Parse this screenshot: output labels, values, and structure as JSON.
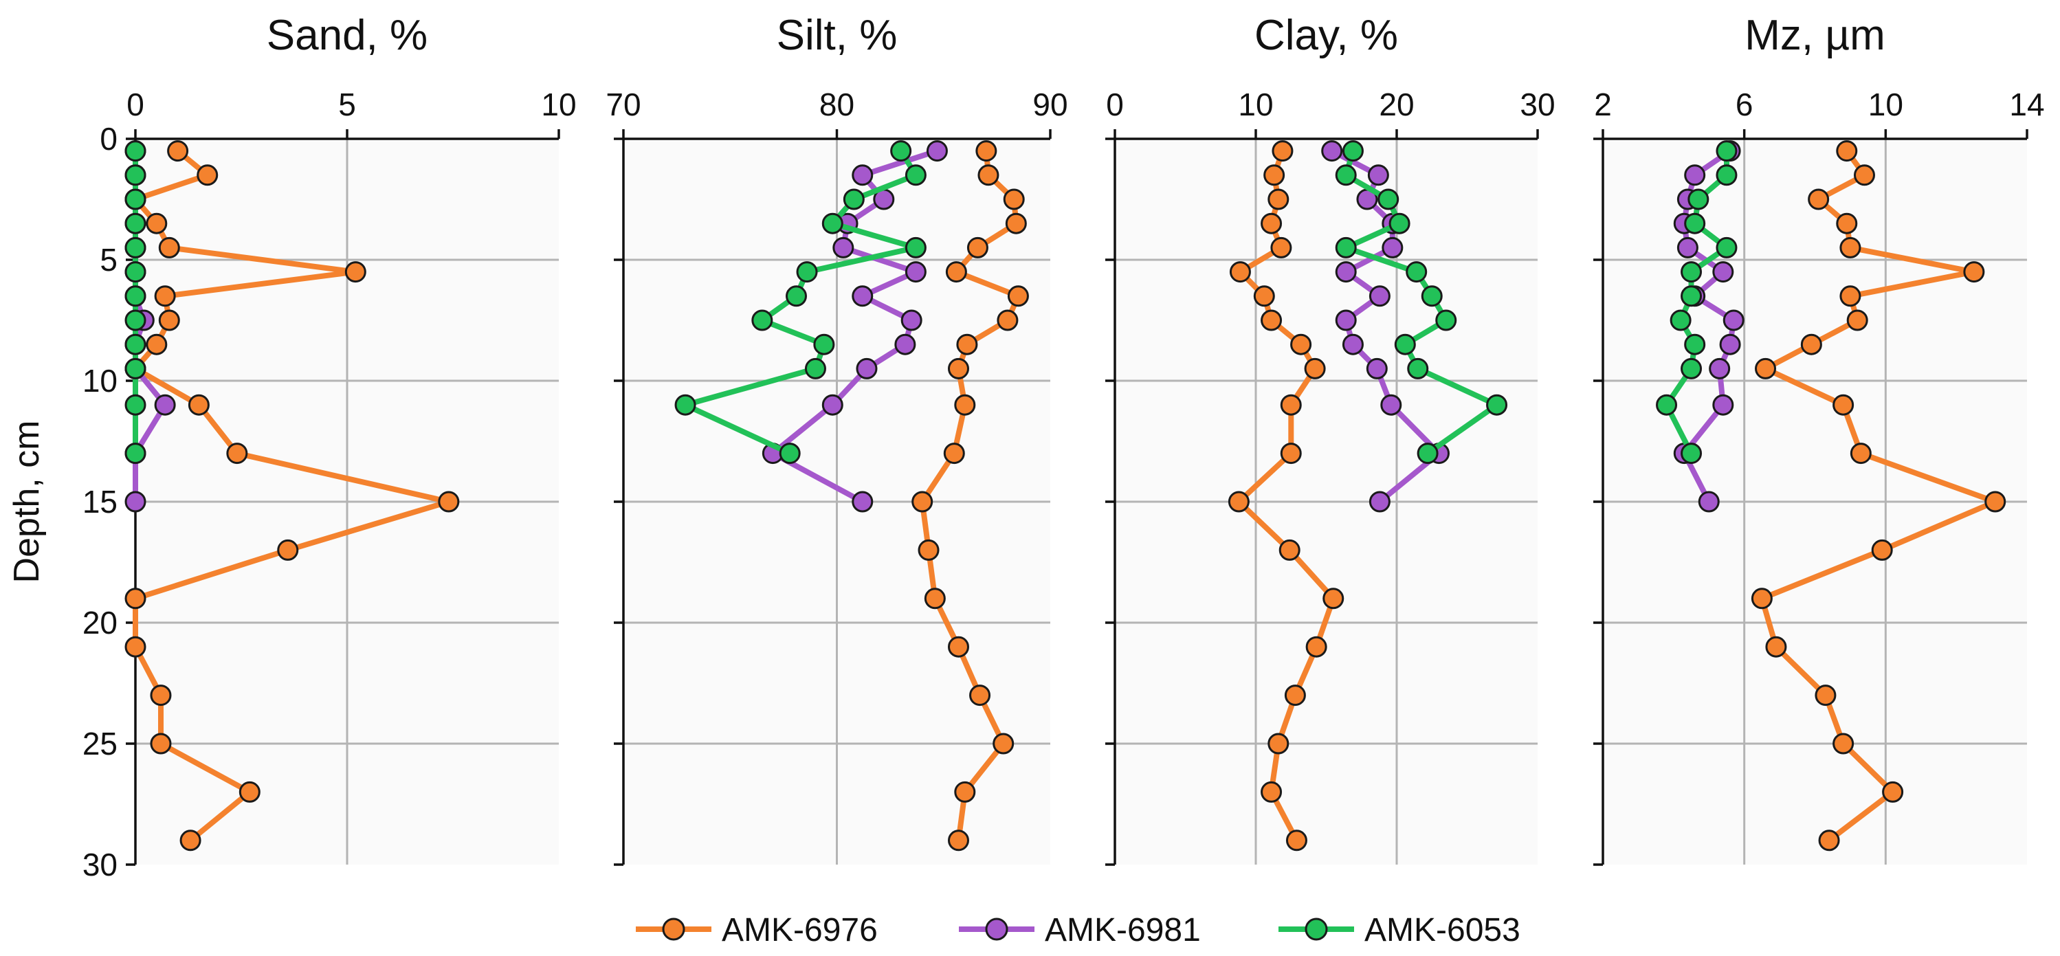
{
  "chart_data": [
    {
      "type": "line",
      "title": "Sand, %",
      "xlabel": "Sand, %",
      "ylabel": "Depth, cm",
      "xlim": [
        0,
        10
      ],
      "ylim": [
        0,
        30
      ],
      "y_inverted": true,
      "xticks": [
        0,
        5,
        10
      ],
      "yticks": [
        0,
        5,
        10,
        15,
        20,
        25,
        30
      ],
      "grid": true,
      "series": [
        {
          "name": "AMK-6976",
          "x": [
            1.0,
            1.7,
            0.0,
            0.5,
            0.8,
            5.2,
            0.7,
            0.8,
            0.5,
            0.0,
            1.5,
            2.4,
            7.4,
            3.6,
            0.0,
            0.0,
            0.6,
            0.6,
            2.7,
            1.3
          ],
          "y": [
            0.5,
            1.5,
            2.5,
            3.5,
            4.5,
            5.5,
            6.5,
            7.5,
            8.5,
            9.5,
            11,
            13,
            15,
            17,
            19,
            21,
            23,
            25,
            27,
            29
          ]
        },
        {
          "name": "AMK-6981",
          "x": [
            0.0,
            0.0,
            0.0,
            0.0,
            0.0,
            0.0,
            0.0,
            0.2,
            0.0,
            0.0,
            0.7,
            0.0,
            0.0
          ],
          "y": [
            0.5,
            1.5,
            2.5,
            3.5,
            4.5,
            5.5,
            6.5,
            7.5,
            8.5,
            9.5,
            11,
            13,
            15
          ]
        },
        {
          "name": "AMK-6053",
          "x": [
            0.0,
            0.0,
            0.0,
            0.0,
            0.0,
            0.0,
            0.0,
            0.0,
            0.0,
            0.0,
            0.0,
            0.0
          ],
          "y": [
            0.5,
            1.5,
            2.5,
            3.5,
            4.5,
            5.5,
            6.5,
            7.5,
            8.5,
            9.5,
            11,
            13
          ]
        }
      ]
    },
    {
      "type": "line",
      "title": "Silt, %",
      "xlabel": "Silt, %",
      "xlim": [
        70,
        90
      ],
      "ylim": [
        0,
        30
      ],
      "y_inverted": true,
      "xticks": [
        70,
        80,
        90
      ],
      "yticks": [
        0,
        5,
        10,
        15,
        20,
        25,
        30
      ],
      "grid": true,
      "series": [
        {
          "name": "AMK-6976",
          "x": [
            87.0,
            87.1,
            88.3,
            88.4,
            86.6,
            85.6,
            88.5,
            88.0,
            86.1,
            85.7,
            86.0,
            85.5,
            84.0,
            84.3,
            84.6,
            85.7,
            86.7,
            87.8,
            86.0,
            85.7
          ],
          "y": [
            0.5,
            1.5,
            2.5,
            3.5,
            4.5,
            5.5,
            6.5,
            7.5,
            8.5,
            9.5,
            11,
            13,
            15,
            17,
            19,
            21,
            23,
            25,
            27,
            29
          ]
        },
        {
          "name": "AMK-6981",
          "x": [
            84.7,
            81.2,
            82.2,
            80.5,
            80.3,
            83.7,
            81.2,
            83.5,
            83.2,
            81.4,
            79.8,
            77.0,
            81.2
          ],
          "y": [
            0.5,
            1.5,
            2.5,
            3.5,
            4.5,
            5.5,
            6.5,
            7.5,
            8.5,
            9.5,
            11,
            13,
            15
          ]
        },
        {
          "name": "AMK-6053",
          "x": [
            83.0,
            83.7,
            80.8,
            79.8,
            83.7,
            78.6,
            78.1,
            76.5,
            79.4,
            79.0,
            72.9,
            77.8
          ],
          "y": [
            0.5,
            1.5,
            2.5,
            3.5,
            4.5,
            5.5,
            6.5,
            7.5,
            8.5,
            9.5,
            11,
            13
          ]
        }
      ]
    },
    {
      "type": "line",
      "title": "Clay, %",
      "xlabel": "Clay, %",
      "xlim": [
        0,
        30
      ],
      "ylim": [
        0,
        30
      ],
      "y_inverted": true,
      "xticks": [
        0,
        10,
        20,
        30
      ],
      "yticks": [
        0,
        5,
        10,
        15,
        20,
        25,
        30
      ],
      "grid": true,
      "series": [
        {
          "name": "AMK-6976",
          "x": [
            11.9,
            11.3,
            11.6,
            11.1,
            11.8,
            8.9,
            10.6,
            11.1,
            13.2,
            14.2,
            12.5,
            12.5,
            8.8,
            12.4,
            15.5,
            14.3,
            12.8,
            11.6,
            11.1,
            12.9
          ],
          "y": [
            0.5,
            1.5,
            2.5,
            3.5,
            4.5,
            5.5,
            6.5,
            7.5,
            8.5,
            9.5,
            11,
            13,
            15,
            17,
            19,
            21,
            23,
            25,
            27,
            29
          ]
        },
        {
          "name": "AMK-6981",
          "x": [
            15.4,
            18.7,
            17.9,
            19.7,
            19.7,
            16.4,
            18.8,
            16.4,
            16.9,
            18.6,
            19.6,
            23.0,
            18.8
          ],
          "y": [
            0.5,
            1.5,
            2.5,
            3.5,
            4.5,
            5.5,
            6.5,
            7.5,
            8.5,
            9.5,
            11,
            13,
            15
          ]
        },
        {
          "name": "AMK-6053",
          "x": [
            16.9,
            16.4,
            19.4,
            20.2,
            16.4,
            21.4,
            22.5,
            23.5,
            20.6,
            21.5,
            27.1,
            22.2
          ],
          "y": [
            0.5,
            1.5,
            2.5,
            3.5,
            4.5,
            5.5,
            6.5,
            7.5,
            8.5,
            9.5,
            11,
            13
          ]
        }
      ]
    },
    {
      "type": "line",
      "title": "Mz, µm",
      "xlabel": "Mz, µm",
      "xlim": [
        2,
        14
      ],
      "ylim": [
        0,
        30
      ],
      "y_inverted": true,
      "xticks": [
        2,
        6,
        10,
        14
      ],
      "yticks": [
        0,
        5,
        10,
        15,
        20,
        25,
        30
      ],
      "grid": true,
      "series": [
        {
          "name": "AMK-6976",
          "x": [
            8.9,
            9.4,
            8.1,
            8.9,
            9.0,
            12.5,
            9.0,
            9.2,
            7.9,
            6.6,
            8.8,
            9.3,
            13.1,
            9.9,
            6.5,
            6.9,
            8.3,
            8.8,
            10.2,
            8.4
          ],
          "y": [
            0.5,
            1.5,
            2.5,
            3.5,
            4.5,
            5.5,
            6.5,
            7.5,
            8.5,
            9.5,
            11,
            13,
            15,
            17,
            19,
            21,
            23,
            25,
            27,
            29
          ]
        },
        {
          "name": "AMK-6981",
          "x": [
            5.6,
            4.6,
            4.4,
            4.3,
            4.4,
            5.4,
            4.6,
            5.7,
            5.6,
            5.3,
            5.4,
            4.3,
            5.0
          ],
          "y": [
            0.5,
            1.5,
            2.5,
            3.5,
            4.5,
            5.5,
            6.5,
            7.5,
            8.5,
            9.5,
            11,
            13,
            15
          ]
        },
        {
          "name": "AMK-6053",
          "x": [
            5.5,
            5.5,
            4.7,
            4.6,
            5.5,
            4.5,
            4.5,
            4.2,
            4.6,
            4.5,
            3.8,
            4.5
          ],
          "y": [
            0.5,
            1.5,
            2.5,
            3.5,
            4.5,
            5.5,
            6.5,
            7.5,
            8.5,
            9.5,
            11,
            13
          ]
        }
      ]
    }
  ],
  "legend": {
    "placement": "bottom-center",
    "items": [
      {
        "name": "AMK-6976",
        "color": "#f4822e"
      },
      {
        "name": "AMK-6981",
        "color": "#a558cc"
      },
      {
        "name": "AMK-6053",
        "color": "#22c158"
      }
    ]
  },
  "colors": {
    "marker_edge": "#1a1a1a",
    "grid": "#b4b4b4",
    "axis": "#111111",
    "plot_bg": "#fafafa"
  }
}
